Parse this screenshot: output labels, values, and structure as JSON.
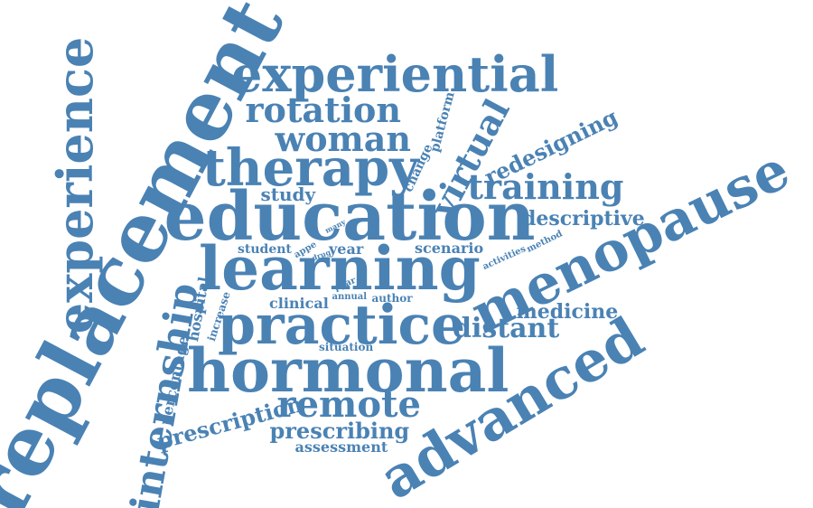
{
  "palette": {
    "word": "#4a82b4",
    "background": "#ffffff"
  },
  "words": [
    {
      "text": "replacement",
      "weight": 10
    },
    {
      "text": "experience",
      "weight": 7
    },
    {
      "text": "internship",
      "weight": 6
    },
    {
      "text": "experiential",
      "weight": 6
    },
    {
      "text": "rotation",
      "weight": 5
    },
    {
      "text": "woman",
      "weight": 5
    },
    {
      "text": "therapy",
      "weight": 7
    },
    {
      "text": "education",
      "weight": 8
    },
    {
      "text": "learning",
      "weight": 8
    },
    {
      "text": "practice",
      "weight": 8
    },
    {
      "text": "hormonal",
      "weight": 8
    },
    {
      "text": "remote",
      "weight": 5
    },
    {
      "text": "prescription",
      "weight": 4
    },
    {
      "text": "prescribing",
      "weight": 3
    },
    {
      "text": "assessment",
      "weight": 2
    },
    {
      "text": "advanced",
      "weight": 8
    },
    {
      "text": "menopause",
      "weight": 8
    },
    {
      "text": "virtual",
      "weight": 5
    },
    {
      "text": "redesigning",
      "weight": 3
    },
    {
      "text": "training",
      "weight": 5
    },
    {
      "text": "descriptive",
      "weight": 3
    },
    {
      "text": "distant",
      "weight": 4
    },
    {
      "text": "medicine",
      "weight": 3
    },
    {
      "text": "study",
      "weight": 2
    },
    {
      "text": "student",
      "weight": 2
    },
    {
      "text": "year",
      "weight": 2
    },
    {
      "text": "scenario",
      "weight": 2
    },
    {
      "text": "activities",
      "weight": 1
    },
    {
      "text": "method",
      "weight": 1
    },
    {
      "text": "platform",
      "weight": 1
    },
    {
      "text": "change",
      "weight": 1
    },
    {
      "text": "many",
      "weight": 1
    },
    {
      "text": "appe",
      "weight": 1
    },
    {
      "text": "drug",
      "weight": 1
    },
    {
      "text": "pyar",
      "weight": 1
    },
    {
      "text": "clinical",
      "weight": 2
    },
    {
      "text": "annual",
      "weight": 1
    },
    {
      "text": "author",
      "weight": 1
    },
    {
      "text": "hospital",
      "weight": 2
    },
    {
      "text": "increase",
      "weight": 1
    },
    {
      "text": "percentage",
      "weight": 2
    },
    {
      "text": "situation",
      "weight": 1
    }
  ]
}
